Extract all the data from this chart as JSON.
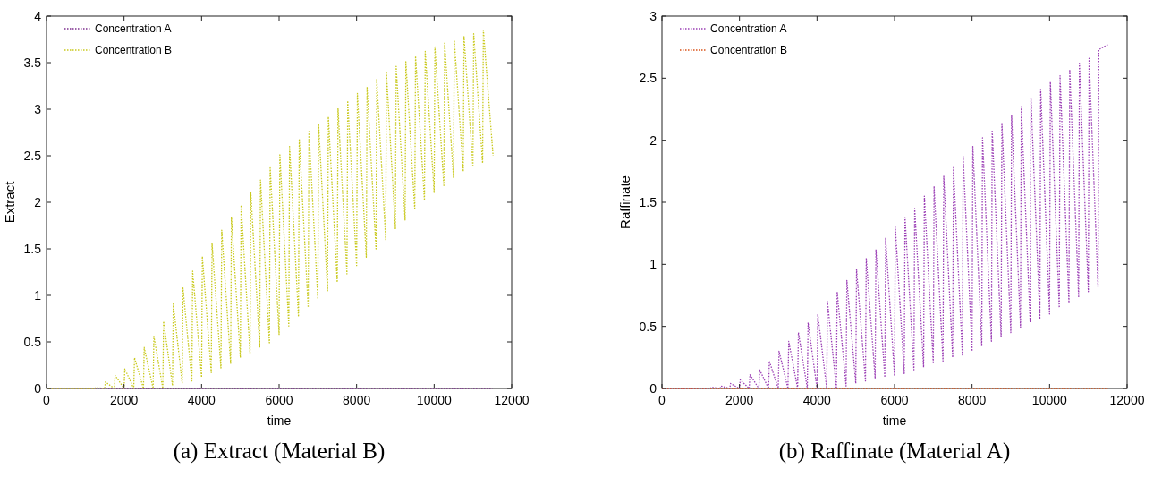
{
  "chart_data": [
    {
      "type": "line",
      "title": "(a) Extract (Material B)",
      "xlabel": "time",
      "ylabel": "Extract",
      "xlim": [
        0,
        12000
      ],
      "xticks": [
        0,
        2000,
        4000,
        6000,
        8000,
        10000,
        12000
      ],
      "ylim": [
        0,
        4
      ],
      "yticks": [
        0,
        0.5,
        1,
        1.5,
        2,
        2.5,
        3,
        3.5,
        4
      ],
      "grid": false,
      "legend": "top left",
      "line_style": "dotted",
      "series": [
        {
          "name": "Concentration A",
          "color": "#7e2f8e",
          "x": [
            0,
            11500
          ],
          "values": [
            0,
            0
          ]
        },
        {
          "name": "Concentration B",
          "color": "#c9c91e",
          "x": [
            0,
            1250,
            1270,
            1500,
            1520,
            1750,
            1770,
            2000,
            2020,
            2250,
            2270,
            2500,
            2520,
            2750,
            2770,
            3000,
            3020,
            3250,
            3270,
            3500,
            3520,
            3750,
            3770,
            4000,
            4020,
            4250,
            4270,
            4500,
            4520,
            4750,
            4770,
            5000,
            5020,
            5250,
            5270,
            5500,
            5520,
            5750,
            5770,
            6000,
            6020,
            6250,
            6270,
            6500,
            6520,
            6750,
            6770,
            7000,
            7020,
            7250,
            7270,
            7500,
            7520,
            7750,
            7770,
            8000,
            8020,
            8250,
            8270,
            8500,
            8520,
            8750,
            8770,
            9000,
            9020,
            9250,
            9270,
            9500,
            9520,
            9750,
            9770,
            10000,
            10020,
            10250,
            10270,
            10500,
            10520,
            10750,
            10770,
            11000,
            11020,
            11250,
            11270,
            11520
          ],
          "values": [
            0,
            0,
            0.01,
            0,
            0.07,
            0,
            0.14,
            0,
            0.21,
            0,
            0.33,
            0,
            0.44,
            0,
            0.56,
            0,
            0.72,
            0.03,
            0.91,
            0.06,
            1.08,
            0.08,
            1.26,
            0.12,
            1.42,
            0.17,
            1.56,
            0.22,
            1.7,
            0.27,
            1.84,
            0.33,
            1.97,
            0.38,
            2.11,
            0.44,
            2.24,
            0.49,
            2.37,
            0.58,
            2.51,
            0.67,
            2.6,
            0.77,
            2.68,
            0.87,
            2.76,
            0.96,
            2.84,
            1.05,
            2.92,
            1.14,
            3.01,
            1.23,
            3.09,
            1.32,
            3.17,
            1.41,
            3.24,
            1.5,
            3.32,
            1.6,
            3.39,
            1.71,
            3.46,
            1.81,
            3.51,
            1.92,
            3.57,
            2.02,
            3.62,
            2.1,
            3.67,
            2.18,
            3.71,
            2.26,
            3.74,
            2.33,
            3.78,
            2.38,
            3.81,
            2.42,
            3.85,
            2.5
          ]
        }
      ]
    },
    {
      "type": "line",
      "title": "(b) Raffinate (Material A)",
      "xlabel": "time",
      "ylabel": "Raffinate",
      "xlim": [
        0,
        12000
      ],
      "xticks": [
        0,
        2000,
        4000,
        6000,
        8000,
        10000,
        12000
      ],
      "ylim": [
        0,
        3
      ],
      "yticks": [
        0,
        0.5,
        1,
        1.5,
        2,
        2.5,
        3
      ],
      "grid": false,
      "legend": "top left",
      "line_style": "dotted",
      "series": [
        {
          "name": "Concentration A",
          "color": "#9b3fb5",
          "x": [
            0,
            1250,
            1270,
            1500,
            1520,
            1750,
            1770,
            2000,
            2020,
            2250,
            2270,
            2500,
            2520,
            2750,
            2770,
            3000,
            3020,
            3250,
            3270,
            3500,
            3520,
            3750,
            3770,
            4000,
            4020,
            4250,
            4270,
            4500,
            4520,
            4750,
            4770,
            5000,
            5020,
            5250,
            5270,
            5500,
            5520,
            5750,
            5770,
            6000,
            6020,
            6250,
            6270,
            6500,
            6520,
            6750,
            6770,
            7000,
            7020,
            7250,
            7270,
            7500,
            7520,
            7750,
            7770,
            8000,
            8020,
            8250,
            8270,
            8500,
            8520,
            8750,
            8770,
            9000,
            9020,
            9250,
            9270,
            9500,
            9520,
            9750,
            9770,
            10000,
            10020,
            10250,
            10270,
            10500,
            10520,
            10750,
            10770,
            11000,
            11020,
            11250,
            11270,
            11500
          ],
          "values": [
            0,
            0,
            0.01,
            0,
            0.02,
            0,
            0.04,
            0,
            0.07,
            0,
            0.11,
            0,
            0.15,
            0,
            0.22,
            0,
            0.3,
            0,
            0.38,
            0,
            0.45,
            0,
            0.53,
            0,
            0.6,
            0,
            0.7,
            0,
            0.78,
            0.02,
            0.87,
            0.04,
            0.96,
            0.06,
            1.05,
            0.08,
            1.12,
            0.09,
            1.21,
            0.1,
            1.3,
            0.12,
            1.38,
            0.15,
            1.45,
            0.17,
            1.55,
            0.2,
            1.63,
            0.22,
            1.71,
            0.25,
            1.78,
            0.27,
            1.87,
            0.3,
            1.95,
            0.34,
            2.02,
            0.38,
            2.08,
            0.41,
            2.14,
            0.45,
            2.2,
            0.49,
            2.27,
            0.53,
            2.34,
            0.56,
            2.41,
            0.6,
            2.47,
            0.65,
            2.52,
            0.69,
            2.57,
            0.74,
            2.62,
            0.78,
            2.66,
            0.82,
            2.73,
            2.77
          ]
        },
        {
          "name": "Concentration B",
          "color": "#d95319",
          "x": [
            0,
            11500
          ],
          "values": [
            0,
            0
          ]
        }
      ]
    }
  ]
}
